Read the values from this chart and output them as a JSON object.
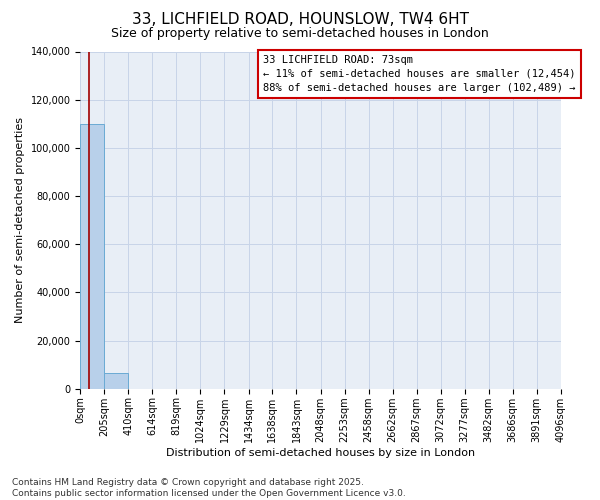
{
  "title": "33, LICHFIELD ROAD, HOUNSLOW, TW4 6HT",
  "subtitle": "Size of property relative to semi-detached houses in London",
  "xlabel": "Distribution of semi-detached houses by size in London",
  "ylabel": "Number of semi-detached properties",
  "annotation_text": "33 LICHFIELD ROAD: 73sqm\n← 11% of semi-detached houses are smaller (12,454)\n88% of semi-detached houses are larger (102,489) →",
  "bin_edges": [
    0,
    205,
    410,
    614,
    819,
    1024,
    1229,
    1434,
    1638,
    1843,
    2048,
    2253,
    2458,
    2662,
    2867,
    3072,
    3277,
    3482,
    3686,
    3891,
    4096
  ],
  "bin_labels": [
    "0sqm",
    "205sqm",
    "410sqm",
    "614sqm",
    "819sqm",
    "1024sqm",
    "1229sqm",
    "1434sqm",
    "1638sqm",
    "1843sqm",
    "2048sqm",
    "2253sqm",
    "2458sqm",
    "2662sqm",
    "2867sqm",
    "3072sqm",
    "3277sqm",
    "3482sqm",
    "3686sqm",
    "3891sqm",
    "4096sqm"
  ],
  "bar_heights": [
    110000,
    6500,
    0,
    0,
    0,
    0,
    0,
    0,
    0,
    0,
    0,
    0,
    0,
    0,
    0,
    0,
    0,
    0,
    0,
    0
  ],
  "bar_color": "#b8d0ea",
  "bar_edge_color": "#6aaad4",
  "vline_color": "#a00000",
  "vline_x": 73,
  "ylim": [
    0,
    140000
  ],
  "yticks": [
    0,
    20000,
    40000,
    60000,
    80000,
    100000,
    120000,
    140000
  ],
  "grid_color": "#c8d4e8",
  "background_color": "#e8eef6",
  "footer_line1": "Contains HM Land Registry data © Crown copyright and database right 2025.",
  "footer_line2": "Contains public sector information licensed under the Open Government Licence v3.0.",
  "annotation_box_color": "#ffffff",
  "annotation_border_color": "#cc0000",
  "title_fontsize": 11,
  "subtitle_fontsize": 9,
  "axis_label_fontsize": 8,
  "tick_fontsize": 7,
  "annotation_fontsize": 7.5,
  "footer_fontsize": 6.5
}
